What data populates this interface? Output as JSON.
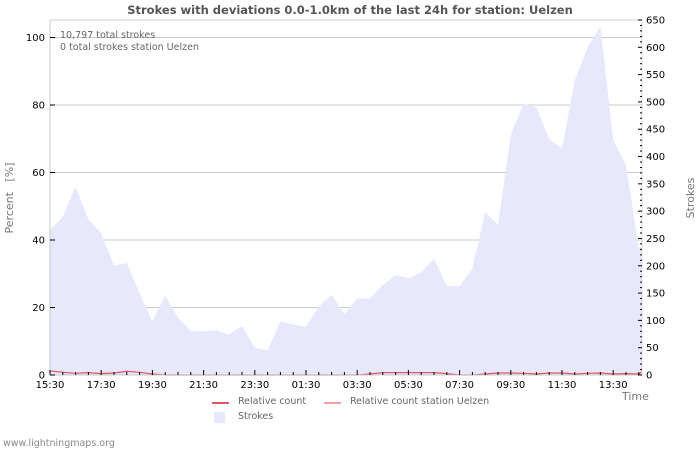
{
  "chart_data": {
    "type": "area",
    "title": "Strokes with deviations 0.0-1.0km of the last 24h for station: Uelzen",
    "xlabel": "Time",
    "ylabel_left": "Percent   [%]",
    "ylabel_right": "Strokes",
    "ylim_left": [
      0,
      100
    ],
    "ylim_right": [
      0,
      650
    ],
    "yticks_left": [
      0,
      20,
      40,
      60,
      80,
      100
    ],
    "yticks_right": [
      0,
      50,
      100,
      150,
      200,
      250,
      300,
      350,
      400,
      450,
      500,
      550,
      600,
      650
    ],
    "x_tick_labels": [
      "15:30",
      "17:30",
      "19:30",
      "21:30",
      "23:30",
      "01:30",
      "03:30",
      "05:30",
      "07:30",
      "09:30",
      "11:30",
      "13:30"
    ],
    "grid": true,
    "legend_position": "bottom",
    "annotations": [
      "10,797 total strokes",
      "0 total strokes station Uelzen"
    ],
    "x": [
      "15:30",
      "16:00",
      "16:30",
      "17:00",
      "17:30",
      "18:00",
      "18:30",
      "19:00",
      "19:30",
      "20:00",
      "20:30",
      "21:00",
      "21:30",
      "22:00",
      "22:30",
      "23:00",
      "23:30",
      "00:00",
      "00:30",
      "01:00",
      "01:30",
      "02:00",
      "02:30",
      "03:00",
      "03:30",
      "04:00",
      "04:30",
      "05:00",
      "05:30",
      "06:00",
      "06:30",
      "07:00",
      "07:30",
      "08:00",
      "08:30",
      "09:00",
      "09:30",
      "10:00",
      "10:30",
      "11:00",
      "11:30",
      "12:00",
      "12:30",
      "13:00",
      "13:30",
      "14:00",
      "14:30",
      "14:45"
    ],
    "series": [
      {
        "name": "Strokes",
        "axis": "right",
        "color": "#e8e8fc",
        "values": [
          265,
          290,
          345,
          285,
          260,
          200,
          205,
          150,
          98,
          145,
          105,
          80,
          80,
          82,
          74,
          90,
          50,
          45,
          98,
          93,
          88,
          125,
          147,
          111,
          140,
          140,
          165,
          183,
          177,
          188,
          213,
          163,
          163,
          195,
          298,
          275,
          440,
          497,
          490,
          432,
          415,
          540,
          600,
          638,
          430,
          385,
          232,
          235
        ]
      },
      {
        "name": "Relative count",
        "axis": "left",
        "color": "#dd5566",
        "values": [
          1.2,
          0.8,
          0.5,
          0.7,
          0.4,
          0.6,
          1.1,
          0.8,
          0.3,
          0,
          0,
          0,
          0,
          0,
          0,
          0,
          0,
          0,
          0,
          0,
          0,
          0,
          0,
          0,
          0,
          0.3,
          0.7,
          0.7,
          0.7,
          0.7,
          0.7,
          0.4,
          0,
          0,
          0.3,
          0.6,
          0.6,
          0.5,
          0.3,
          0.6,
          0.6,
          0.3,
          0.5,
          0.6,
          0.3,
          0.4,
          0.3,
          1.0
        ]
      },
      {
        "name": "Relative count station Uelzen",
        "axis": "left",
        "color": "#f4a0a0",
        "values": []
      }
    ]
  },
  "header": {
    "title": "Strokes with deviations 0.0-1.0km of the last 24h for station: Uelzen"
  },
  "annotations": {
    "total_strokes": "10,797 total strokes",
    "station_strokes": "0 total strokes station Uelzen"
  },
  "axes": {
    "left_title": "Percent   [%]",
    "right_title": "Strokes",
    "x_title": "Time",
    "left_ticks": [
      "0",
      "20",
      "40",
      "60",
      "80",
      "100"
    ],
    "right_ticks": [
      "0",
      "50",
      "100",
      "150",
      "200",
      "250",
      "300",
      "350",
      "400",
      "450",
      "500",
      "550",
      "600",
      "650"
    ],
    "x_ticks": [
      "15:30",
      "17:30",
      "19:30",
      "21:30",
      "23:30",
      "01:30",
      "03:30",
      "05:30",
      "07:30",
      "09:30",
      "11:30",
      "13:30"
    ]
  },
  "legend": {
    "items": [
      {
        "label": "Relative count",
        "color": "#dd5566"
      },
      {
        "label": "Relative count station Uelzen",
        "color": "#f4a0a0"
      },
      {
        "label": "Strokes",
        "color": "#e8e8fc"
      }
    ]
  },
  "footer": {
    "source": "www.lightningmaps.org"
  }
}
